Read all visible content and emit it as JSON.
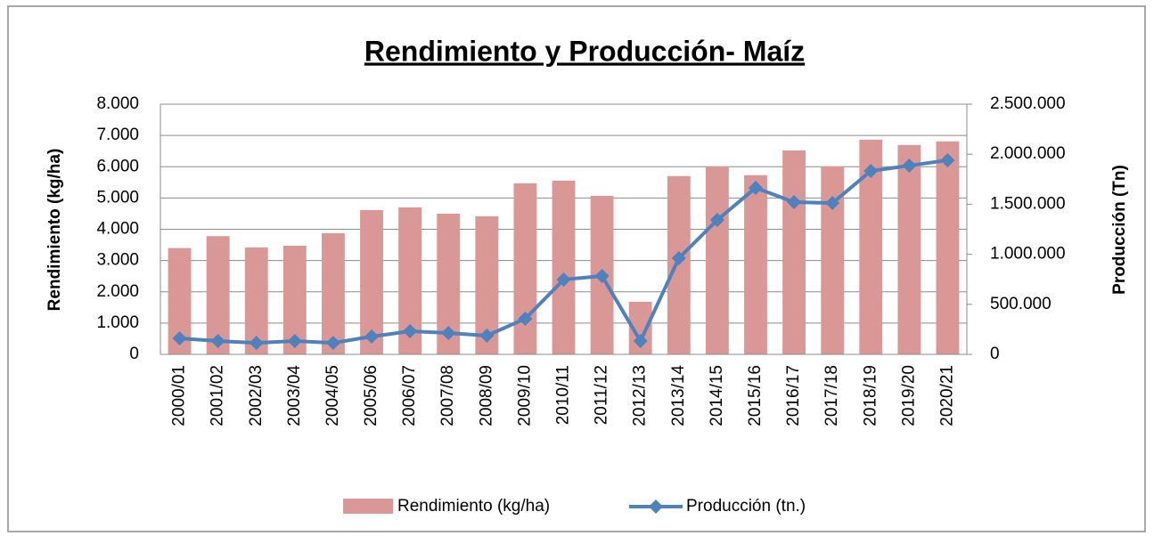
{
  "chart_data": {
    "type": "bar-line",
    "title": "Rendimiento y Producción- Maíz",
    "y_label": "Rendimiento (kg/ha)",
    "y2_label": "Producción (Tn)",
    "categories": [
      "2000/01",
      "2001/02",
      "2002/03",
      "2003/04",
      "2004/05",
      "2005/06",
      "2006/07",
      "2007/08",
      "2008/09",
      "2009/10",
      "2010/11",
      "2011/12",
      "2012/13",
      "2013/14",
      "2014/15",
      "2015/16",
      "2016/17",
      "2017/18",
      "2018/19",
      "2019/20",
      "2020/21"
    ],
    "series": [
      {
        "name": "Rendimiento (kg/ha)",
        "type": "bar",
        "color": "#d99795",
        "values": [
          3400,
          3780,
          3420,
          3475,
          3875,
          4615,
          4700,
          4500,
          4415,
          5470,
          5555,
          5070,
          1680,
          5700,
          6010,
          5730,
          6520,
          6010,
          6865,
          6695,
          6810
        ]
      },
      {
        "name": "Producción (tn.)",
        "type": "line",
        "axis": "y2",
        "color": "#4f81bd",
        "values": [
          160000,
          133000,
          115000,
          133000,
          115000,
          178000,
          231000,
          213000,
          187000,
          356000,
          747000,
          783000,
          133000,
          961000,
          1343000,
          1664000,
          1521000,
          1512000,
          1833000,
          1886000,
          1940000
        ]
      }
    ],
    "ylim": [
      0,
      8000
    ],
    "yticks": [
      0,
      {
        "value": 1000,
        "label": "1.000"
      },
      {
        "value": 2000,
        "label": "2.000"
      },
      {
        "value": 3000,
        "label": "3.000"
      },
      {
        "value": 4000,
        "label": "4.000"
      },
      {
        "value": 5000,
        "label": "5.000"
      },
      {
        "value": 6000,
        "label": "6.000"
      },
      {
        "value": 7000,
        "label": "7.000"
      },
      {
        "value": 8000,
        "label": "8.000"
      }
    ],
    "y2lim": [
      0,
      2500000
    ],
    "y2ticks": [
      0,
      {
        "value": 500000,
        "label": "500.000"
      },
      {
        "value": 1000000,
        "label": "1.000.000"
      },
      {
        "value": 1500000,
        "label": "1.500.000"
      },
      {
        "value": 2000000,
        "label": "2.000.000"
      },
      {
        "value": 2500000,
        "label": "2.500.000"
      }
    ],
    "grid": true,
    "legend": "bottom"
  }
}
